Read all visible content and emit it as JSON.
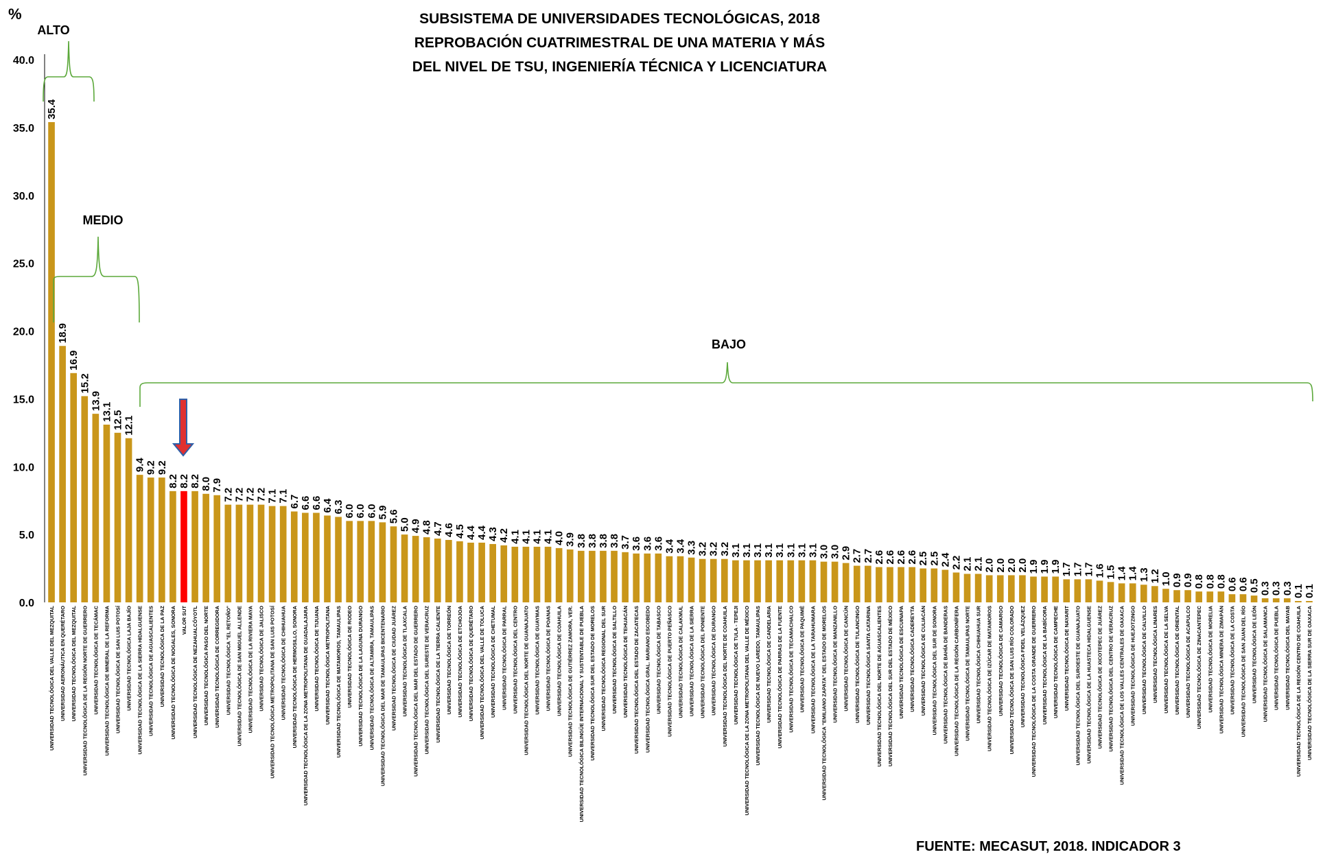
{
  "colors": {
    "bar": "#C9961A",
    "highlight": "#FF0000",
    "bracket": "#5BA83A",
    "arrow_fill": "#E03030",
    "arrow_stroke": "#2E5FA8"
  },
  "chart_data": {
    "type": "bar",
    "title": [
      "SUBSISTEMA DE UNIVERSIDADES TECNOLÓGICAS, 2018",
      "REPROBACIÓN CUATRIMESTRAL DE UNA MATERIA Y MÁS",
      "DEL NIVEL DE TSU, INGENIERÍA TÉCNICA Y LICENCIATURA"
    ],
    "ylabel": "%",
    "ylim": [
      0,
      40
    ],
    "yticks": [
      "0.0",
      "5.0",
      "10.0",
      "15.0",
      "20.0",
      "25.0",
      "30.0",
      "35.0",
      "40.0"
    ],
    "highlight_category": "VALOR SUT",
    "bands": [
      {
        "label": "ALTO"
      },
      {
        "label": "MEDIO"
      },
      {
        "label": "BAJO"
      }
    ],
    "source": "FUENTE: MECASUT, 2018. INDICADOR 3",
    "categories": [
      "UNIVERSIDAD TECNOLÓGICA DEL VALLE DEL MEZQUITAL",
      "UNIVERSIDAD AERONÁUTICA EN QUERÉTARO",
      "UNIVERSIDAD TECNOLÓGICA DEL MEZQUITAL",
      "UNIVERSIDAD TECNOLÓGICA DE LA REGIÓN NORTE DE GUERRERO",
      "UNIVERSIDAD TECNOLÓGICA DE TECÁMAC",
      "UNIVERSIDAD TECNOLÓGICA DE MINERAL DE LA REFORMA",
      "UNIVERSIDAD TECNOLÓGICA DE SAN LUIS POTOSÍ",
      "UNIVERSIDAD TECNOLÓGICA LAJA BAJÍO",
      "UNIVERSIDAD TECNOLÓGICA DE LA SIERRA HIDALGUENSE",
      "UNIVERSIDAD TECNOLÓGICA DE AGUASCALIENTES",
      "UNIVERSIDAD TECNOLÓGICA DE LA PAZ",
      "UNIVERSIDAD TECNOLÓGICA DE NOGALES, SONORA",
      "VALOR SUT",
      "UNIVERSIDAD TECNOLÓGICA DE NEZAHUALCÓYOTL",
      "UNIVERSIDAD TECNOLÓGICA PASO DEL NORTE",
      "UNIVERSIDAD TECNOLÓGICA DE CORREGIDORA",
      "UNIVERSIDAD TECNOLÓGICA \"EL RETOÑO\"",
      "UNIVERSIDAD TECNOLÓGICA DE SAN MIGUEL ALLENDE",
      "UNIVERSIDAD TECNOLÓGICA DE LA RIVIERA MAYA",
      "UNIVERSIDAD TECNOLÓGICA DE JALISCO",
      "UNIVERSIDAD TECNOLÓGICA METROPOLITANA DE SAN LUIS POTOSÍ",
      "UNIVERSIDAD TECNOLÓGICA DE CHIHUAHUA",
      "UNIVERSIDAD TECNOLÓGICA DE HERMOSILLO, SONORA",
      "UNIVERSIDAD TECNOLÓGICA DE LA ZONA METROPOLITANA DE GUADALAJARA",
      "UNIVERSIDAD TECNOLÓGICA DE TIJUANA",
      "UNIVERSIDAD TECNOLÓGICA METROPOLITANA",
      "UNIVERSIDAD TECNOLÓGICA DE MATAMOROS, TAMAULIPAS",
      "UNIVERSIDAD TECNOLÓGICA DE RODEO",
      "UNIVERSIDAD TECNOLÓGICA DE LA LAGUNA DURANGO",
      "UNIVERSIDAD TECNOLÓGICA DE ALTAMIRA, TAMAULIPAS",
      "UNIVERSIDAD TECNOLÓGICA DEL MAR DE TAMAULIPAS BICENTENARIO",
      "UNIVERSIDAD TECNOLÓGICA DE CIUDAD JUÁREZ",
      "UNIVERSIDAD TECNOLÓGICA DE TLAXCALA",
      "UNIVERSIDAD TECNOLÓGICA DEL MAR DEL ESTADO DE GUERRERO",
      "UNIVERSIDAD TECNOLÓGICA DEL SURESTE DE VERACRUZ",
      "UNIVERSIDAD TECNOLÓGICA DE LA TIERRA CALIENTE",
      "UNIVERSIDAD TECNOLÓGICA DE TORREÓN",
      "UNIVERSIDAD TECNOLÓGICA DE ETCHOJOA",
      "UNIVERSIDAD TECNOLÓGICA DE QUERÉTARO",
      "UNIVERSIDAD TECNOLÓGICA DEL VALLE DE TOLUCA",
      "UNIVERSIDAD TECNOLÓGICA DE CHETUMAL",
      "UNIVERSIDAD TECNOLÓGICA DE PARRAL",
      "UNIVERSIDAD TECNOLÓGICA DEL CENTRO",
      "UNIVERSIDAD TECNOLÓGICA DEL NORTE DE GUANAJUATO",
      "UNIVERSIDAD TECNOLÓGICA DE GUAYMAS",
      "UNIVERSIDAD TECNOLÓGICA DE POANAS",
      "UNIVERSIDAD TECNOLÓGICA DE COAHUILA",
      "UNIVERSIDAD TECNOLÓGICA DE GUTIÉRREZ ZAMORA, VER.",
      "UNIVERSIDAD TECNOLÓGICA BILINGÜE INTERNACIONAL Y SUSTENTABLE DE PUEBLA",
      "UNIVERSIDAD TECNOLÓGICA SUR DEL ESTADO DE MORELOS",
      "UNIVERSIDAD TECNOLÓGICA REGIONAL DEL SUR",
      "UNIVERSIDAD TECNOLÓGICA DE SALTILLO",
      "UNIVERSIDAD TECNOLÓGICA DE TEHUACÁN",
      "UNIVERSIDAD TECNOLÓGICA DEL ESTADO DE ZACATECAS",
      "UNIVERSIDAD TECNOLÓGICA GRAL. MARIANO ESCOBEDO",
      "UNIVERSIDAD TECNOLÓGICA DE TABASCO",
      "UNIVERSIDAD TECNOLÓGICA DE PUERTO PEÑASCO",
      "UNIVERSIDAD TECNOLÓGICA DE CALAKMUL",
      "UNIVERSIDAD TECNOLÓGICA DE LA SIERRA",
      "UNIVERSIDAD TECNOLÓGICA DEL PONIENTE",
      "UNIVERSIDAD TECNOLÓGICA DE DURANGO",
      "UNIVERSIDAD TECNOLÓGICA DEL NORTE DE COAHUILA",
      "UNIVERSIDAD TECNOLÓGICA DE TULA - TEPEJI",
      "UNIVERSIDAD TECNOLÓGICA DE LA ZONA METROPOLITANA DEL VALLE DE MÉXICO",
      "UNIVERSIDAD TECNOLÓGICA DE NUEVO LAREDO, TAMAULIPAS",
      "UNIVERSIDAD TECNOLÓGICA DE CANDELARIA",
      "UNIVERSIDAD TECNOLÓGICA DE PARRAS DE LA FUENTE",
      "UNIVERSIDAD TECNOLÓGICA DE TECAMACHALCO",
      "UNIVERSIDAD TECNOLÓGICA DE PAQUIMÉ",
      "UNIVERSIDAD TECNOLÓGICA DE LA TARAHUMARA",
      "UNIVERSIDAD TECNOLÓGICA \"EMILIANO ZAPATA\" DEL ESTADO DE MORELOS",
      "UNIVERSIDAD TECNOLÓGICA DE MANZANILLO",
      "UNIVERSIDAD TECNOLÓGICA DE CANCÚN",
      "UNIVERSIDAD TECNOLÓGICA DE TULANCINGO",
      "UNIVERSIDAD TECNOLÓGICA SANTA CATARINA",
      "UNIVERSIDAD TECNOLÓGICA DEL NORTE DE AGUASCALIENTES",
      "UNIVERSIDAD TECNOLÓGICA DEL SUR DEL ESTADO DE MÉXICO",
      "UNIVERSIDAD TECNOLÓGICA DE ESCUINAPA",
      "UNIVERSIDAD TECNOLÓGICA CADEREYTA",
      "UNIVERSIDAD TECNOLÓGICA DE CULIACÁN",
      "UNIVERSIDAD TECNOLÓGICA DEL SUR DE SONORA",
      "UNIVERSIDAD TECNOLÓGICA DE BAHÍA DE BANDERAS",
      "UNIVERSIDAD TECNOLÓGICA DE LA REGIÓN CARBONÍFERA",
      "UNIVERSIDAD TECNOLÓGICA DE TAMAULIPAS NORTE",
      "UNIVERSIDAD TECNOLÓGICA CHIHUAHUA SUR",
      "UNIVERSIDAD TECNOLÓGICA DE IZÚCAR DE MATAMOROS",
      "UNIVERSIDAD TECNOLÓGICA DE CAMARGO",
      "UNIVERSIDAD TECNOLÓGICA DE SAN LUIS RÍO COLORADO",
      "UNIVERSIDAD TECNOLÓGICA FIDEL VELÁZQUEZ",
      "UNIVERSIDAD TECNOLÓGICA DE LA COSTA GRANDE DE GUERRERO",
      "UNIVERSIDAD TECNOLÓGICA DE LA BABÍCORA",
      "UNIVERSIDAD TECNOLÓGICA DE CAMPECHE",
      "UNIVERSIDAD TECNOLÓGICA DE NAYARIT",
      "UNIVERSIDAD TECNOLÓGICA DEL SUROESTE DE GUANAJUATO",
      "UNIVERSIDAD TECNOLÓGICA DE LA HUASTECA HIDALGUENSE",
      "UNIVERSIDAD TECNOLÓGICA DE XICOTEPEC DE JUÁREZ",
      "UNIVERSIDAD TECNOLÓGICA DEL CENTRO DE VERACRUZ",
      "UNIVERSIDAD TECNOLÓGICA DE LOS VALLES CENTRALES DE OAXACA",
      "UNIVERSIDAD TECNOLÓGICA DE HUEJOTZINGO",
      "UNIVERSIDAD TECNOLÓGICA DE CALVILLO",
      "UNIVERSIDAD TECNOLÓGICA LINARES",
      "UNIVERSIDAD TECNOLÓGICA DE LA SELVA",
      "UNIVERSIDAD TECNOLÓGICA DE ORIENTAL",
      "UNIVERSIDAD TECNOLÓGICA DE ACAPULCO",
      "UNIVERSIDAD TECNOLÓGICA DE ZINACANTEPEC",
      "UNIVERSIDAD TECNOLÓGICA DE MORELIA",
      "UNIVERSIDAD TECNOLÓGICA MINERA DE ZIMAPÁN",
      "UNIVERSIDAD TECNOLÓGICA DE LA COSTA",
      "UNIVERSIDAD TECNOLÓGICA DE SAN JUAN DEL RÍO",
      "UNIVERSIDAD TECNOLÓGICA DE LEÓN",
      "UNIVERSIDAD TECNOLÓGICA DE SALAMANCA",
      "UNIVERSIDAD TECNOLÓGICA DE PUEBLA",
      "UNIVERSIDAD TECNOLÓGICA DEL MAYAB",
      "UNIVERSIDAD TECNOLÓGICA DE LA REGIÓN CENTRO DE COAHUILA",
      "UNIVERSIDAD TECNOLÓGICA DE LA SIERRA SUR DE OAXACA"
    ],
    "values": [
      35.4,
      18.9,
      16.9,
      15.2,
      13.9,
      13.1,
      12.5,
      12.1,
      9.4,
      9.2,
      9.2,
      8.2,
      8.2,
      8.2,
      8.0,
      7.9,
      7.2,
      7.2,
      7.2,
      7.2,
      7.1,
      7.1,
      6.7,
      6.6,
      6.6,
      6.4,
      6.3,
      6.0,
      6.0,
      6.0,
      5.9,
      5.6,
      5.0,
      4.9,
      4.8,
      4.7,
      4.6,
      4.5,
      4.4,
      4.4,
      4.3,
      4.2,
      4.1,
      4.1,
      4.1,
      4.1,
      4.0,
      3.9,
      3.8,
      3.8,
      3.8,
      3.8,
      3.7,
      3.6,
      3.6,
      3.6,
      3.4,
      3.4,
      3.3,
      3.2,
      3.2,
      3.2,
      3.1,
      3.1,
      3.1,
      3.1,
      3.1,
      3.1,
      3.1,
      3.1,
      3.0,
      3.0,
      2.9,
      2.7,
      2.7,
      2.6,
      2.6,
      2.6,
      2.6,
      2.5,
      2.5,
      2.4,
      2.2,
      2.1,
      2.1,
      2.0,
      2.0,
      2.0,
      2.0,
      1.9,
      1.9,
      1.9,
      1.7,
      1.7,
      1.7,
      1.6,
      1.5,
      1.4,
      1.4,
      1.3,
      1.2,
      1.0,
      0.9,
      0.9,
      0.8,
      0.8,
      0.8,
      0.6,
      0.6,
      0.5,
      0.3,
      0.3,
      0.3,
      0.1,
      0.1
    ]
  }
}
